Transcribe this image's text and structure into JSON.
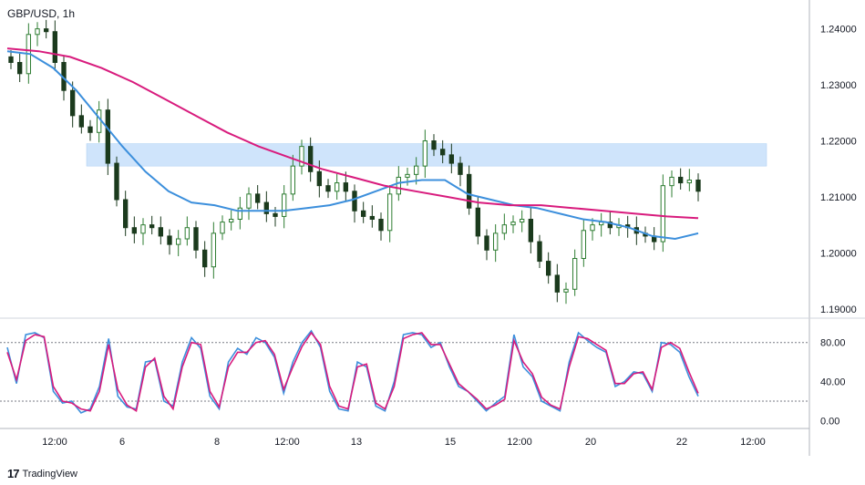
{
  "header": {
    "symbol_label": "GBP/USD, 1h"
  },
  "brand": {
    "logo_glyph": "17",
    "name": "TradingView"
  },
  "colors": {
    "ma_fast": "#3c8fdc",
    "ma_slow": "#d81b7d",
    "candle": "#2e7d32",
    "candle_alt": "#1b3a1d",
    "zone": "#cfe4fb",
    "stoch_k": "#3c8fdc",
    "stoch_d": "#d81b7d"
  },
  "chart_data": [
    {
      "type": "candlestick",
      "title": "GBP/USD, 1h",
      "x_tick_labels": [
        "12:00",
        "6",
        "8",
        "12:00",
        "13",
        "15",
        "12:00",
        "20",
        "22",
        "12:00"
      ],
      "y_tick_labels": [
        "1.24000",
        "1.23000",
        "1.22000",
        "1.21000",
        "1.20000",
        "1.19000"
      ],
      "ylim": [
        1.1885,
        1.2445
      ],
      "resistance_zone": [
        1.2155,
        1.2195
      ],
      "grid": false,
      "close_series_approx": [
        1.234,
        1.232,
        1.239,
        1.24,
        1.2395,
        1.234,
        1.229,
        1.2245,
        1.2225,
        1.2215,
        1.2255,
        1.216,
        1.2095,
        1.2045,
        1.2035,
        1.205,
        1.2045,
        1.203,
        1.2015,
        1.2025,
        1.2045,
        1.2005,
        1.1975,
        1.2035,
        1.2055,
        1.206,
        1.208,
        1.2105,
        1.209,
        1.207,
        1.2065,
        1.2105,
        1.2155,
        1.219,
        1.2145,
        1.212,
        1.211,
        1.2125,
        1.211,
        1.2075,
        1.2065,
        1.206,
        1.204,
        1.2105,
        1.2135,
        1.214,
        1.2155,
        1.22,
        1.2185,
        1.2175,
        1.216,
        1.214,
        1.208,
        1.203,
        1.2005,
        1.2035,
        1.205,
        1.2055,
        1.206,
        1.202,
        1.1985,
        1.196,
        1.193,
        1.1935,
        1.199,
        1.204,
        1.205,
        1.2055,
        1.2045,
        1.205,
        1.2045,
        1.2035,
        1.203,
        1.202,
        1.212,
        1.2135,
        1.2125,
        1.213,
        1.211
      ],
      "moving_averages": [
        {
          "points": [
            1.236,
            1.2355,
            1.233,
            1.229,
            1.224,
            1.219,
            1.2145,
            1.211,
            1.209,
            1.2085,
            1.2075,
            1.2075,
            1.2075,
            1.208,
            1.2085,
            1.2095,
            1.211,
            1.2125,
            1.213,
            1.213,
            1.2105,
            1.2095,
            1.2085,
            1.208,
            1.207,
            1.206,
            1.2055,
            1.2045,
            1.203,
            1.2025,
            1.2035
          ]
        },
        {
          "points": [
            1.2365,
            1.236,
            1.235,
            1.233,
            1.2305,
            1.2275,
            1.2245,
            1.2215,
            1.219,
            1.217,
            1.215,
            1.2135,
            1.212,
            1.211,
            1.21,
            1.209,
            1.2085,
            1.2085,
            1.208,
            1.2075,
            1.207,
            1.2065,
            1.2062
          ]
        }
      ]
    },
    {
      "type": "line",
      "title": "",
      "y_tick_labels": [
        "80.00",
        "40.00",
        "0.00"
      ],
      "ylim": [
        -8,
        104
      ],
      "reference_levels": [
        80,
        20
      ],
      "series": [
        {
          "values": [
            75,
            38,
            88,
            90,
            85,
            30,
            18,
            20,
            8,
            12,
            35,
            84,
            25,
            14,
            12,
            60,
            62,
            20,
            15,
            60,
            85,
            74,
            25,
            12,
            60,
            74,
            68,
            85,
            80,
            65,
            28,
            60,
            80,
            92,
            75,
            30,
            12,
            10,
            60,
            55,
            15,
            10,
            40,
            88,
            90,
            88,
            75,
            80,
            55,
            35,
            30,
            20,
            10,
            18,
            25,
            88,
            55,
            45,
            20,
            15,
            10,
            60,
            90,
            82,
            75,
            70,
            35,
            40,
            50,
            48,
            30,
            80,
            78,
            70,
            45,
            25
          ]
        },
        {
          "values": [
            70,
            42,
            82,
            88,
            86,
            35,
            20,
            18,
            12,
            10,
            30,
            78,
            32,
            16,
            10,
            55,
            64,
            25,
            12,
            55,
            80,
            78,
            30,
            14,
            55,
            70,
            70,
            80,
            82,
            68,
            32,
            55,
            76,
            90,
            78,
            35,
            15,
            12,
            55,
            58,
            18,
            12,
            35,
            84,
            88,
            90,
            78,
            78,
            58,
            38,
            30,
            22,
            12,
            16,
            22,
            82,
            60,
            48,
            24,
            16,
            12,
            55,
            86,
            84,
            78,
            72,
            38,
            38,
            48,
            50,
            32,
            75,
            80,
            74,
            50,
            28
          ]
        }
      ]
    }
  ]
}
